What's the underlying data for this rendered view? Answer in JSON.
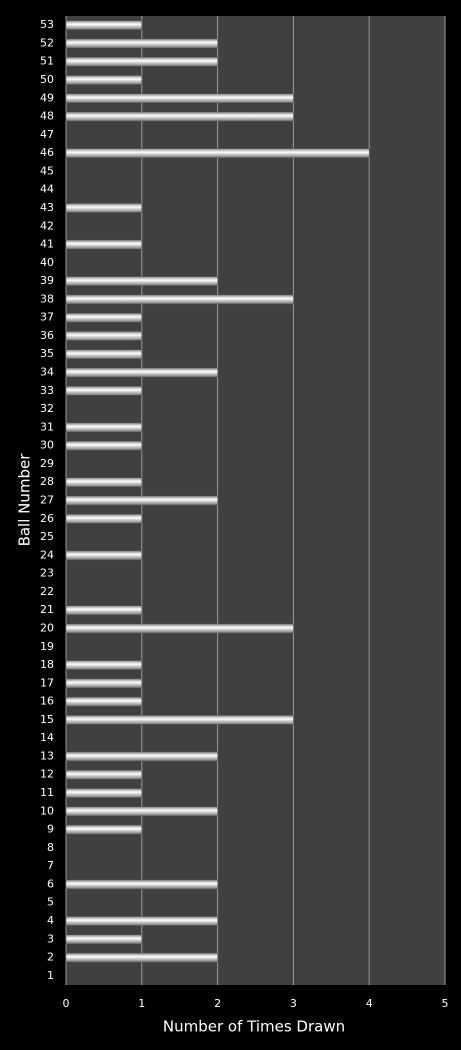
{
  "chart_data": {
    "type": "barh",
    "x_label": "Number of Times Drawn",
    "y_label": "Ball Number",
    "categories": [
      "1",
      "2",
      "3",
      "4",
      "5",
      "6",
      "7",
      "8",
      "9",
      "10",
      "11",
      "12",
      "13",
      "14",
      "15",
      "16",
      "17",
      "18",
      "19",
      "20",
      "21",
      "22",
      "23",
      "24",
      "25",
      "26",
      "27",
      "28",
      "29",
      "30",
      "31",
      "32",
      "33",
      "34",
      "35",
      "36",
      "37",
      "38",
      "39",
      "40",
      "41",
      "42",
      "43",
      "44",
      "45",
      "46",
      "47",
      "48",
      "49",
      "50",
      "51",
      "52",
      "53"
    ],
    "values": [
      0,
      2,
      1,
      2,
      0,
      2,
      0,
      0,
      1,
      2,
      1,
      1,
      2,
      0,
      3,
      1,
      1,
      1,
      0,
      3,
      1,
      0,
      0,
      1,
      0,
      1,
      2,
      1,
      0,
      1,
      1,
      0,
      1,
      2,
      1,
      1,
      1,
      3,
      2,
      0,
      1,
      0,
      1,
      0,
      0,
      4,
      0,
      3,
      3,
      1,
      2,
      2,
      1
    ],
    "color": "#ffffff",
    "xlim": [
      0,
      5
    ],
    "xticks": [
      0,
      1,
      2,
      3,
      4,
      5
    ],
    "grid": true
  }
}
